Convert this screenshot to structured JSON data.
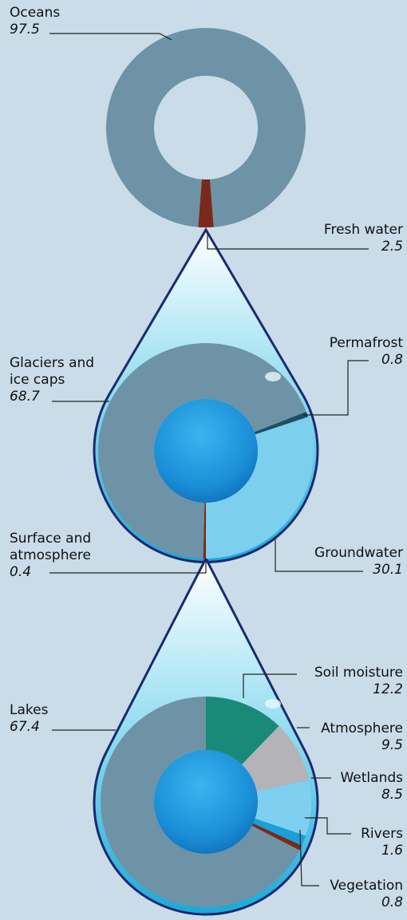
{
  "chart_data": [
    {
      "type": "pie",
      "labels": [
        "Fresh water",
        "Oceans"
      ],
      "values": [
        2.5,
        97.5
      ],
      "colors": [
        "#7a2a1a",
        "#6e93a6"
      ]
    },
    {
      "type": "pie",
      "labels": [
        "Surface and atmosphere",
        "Glaciers and ice caps",
        "Permafrost",
        "Groundwater"
      ],
      "values": [
        0.4,
        68.7,
        0.8,
        30.1
      ],
      "colors": [
        "#7a2a1a",
        "#6e93a6",
        "#1f4f63",
        "#7dcfee"
      ]
    },
    {
      "type": "pie",
      "labels": [
        "Soil moisture",
        "Atmosphere",
        "Wetlands",
        "Rivers",
        "Vegetation",
        "Lakes"
      ],
      "values": [
        12.2,
        9.5,
        8.5,
        1.6,
        0.8,
        67.4
      ],
      "colors": [
        "#1a8a78",
        "#b3b3b8",
        "#7fd0f0",
        "#1aa0d8",
        "#7a2a1a",
        "#6e93a6"
      ]
    }
  ]
}
